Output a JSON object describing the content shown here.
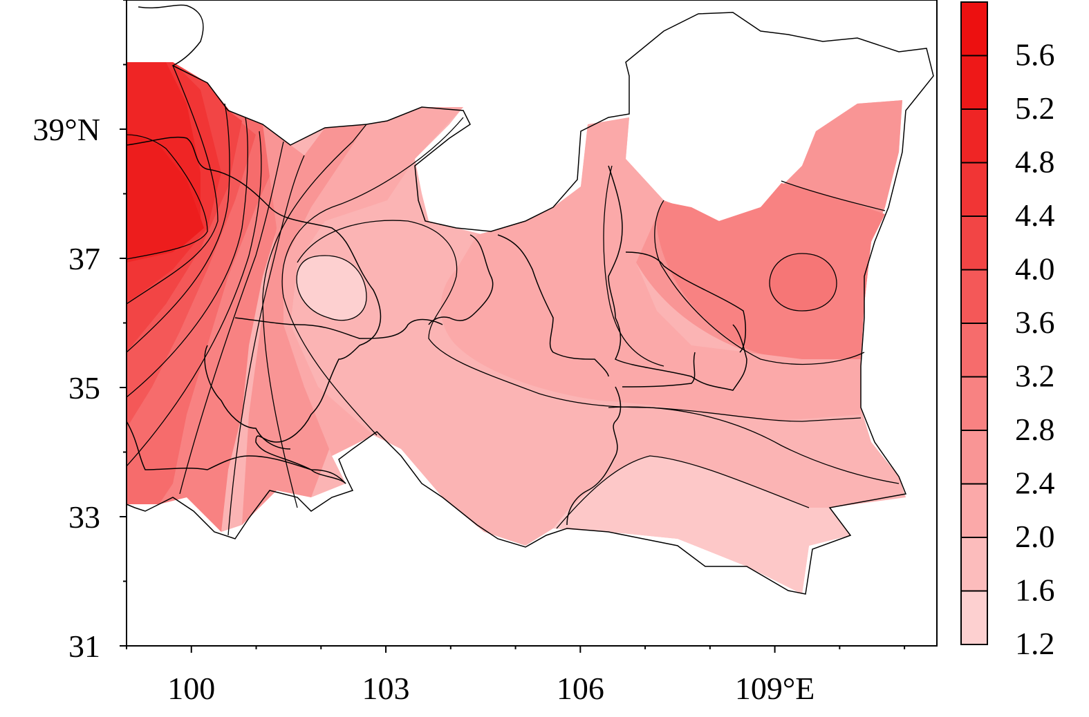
{
  "map": {
    "y_ticks": [
      {
        "value": 31,
        "label": "31"
      },
      {
        "value": 33,
        "label": "33"
      },
      {
        "value": 35,
        "label": "35"
      },
      {
        "value": 37,
        "label": "37"
      },
      {
        "value": 39,
        "label": "39°N"
      }
    ],
    "x_ticks": [
      {
        "value": 100,
        "label": "100"
      },
      {
        "value": 103,
        "label": "103"
      },
      {
        "value": 106,
        "label": "106"
      },
      {
        "value": 109,
        "label": "109°E"
      }
    ],
    "lon_range": [
      99,
      111.5
    ],
    "lat_range": [
      31,
      41
    ],
    "scale": {
      "type": "continuous-red",
      "labels": [
        "5.6",
        "5.2",
        "4.8",
        "4.4",
        "4.0",
        "3.6",
        "3.2",
        "2.8",
        "2.4",
        "2.0",
        "1.6",
        "1.2"
      ]
    },
    "colors": {
      "fill": [
        "#fdd0d0",
        "#fcbcbc",
        "#fba9a9",
        "#f99595",
        "#f88282",
        "#f66c6c",
        "#f45858",
        "#f24545",
        "#f13535",
        "#ef2525",
        "#ee1818",
        "#ed1010"
      ]
    }
  }
}
